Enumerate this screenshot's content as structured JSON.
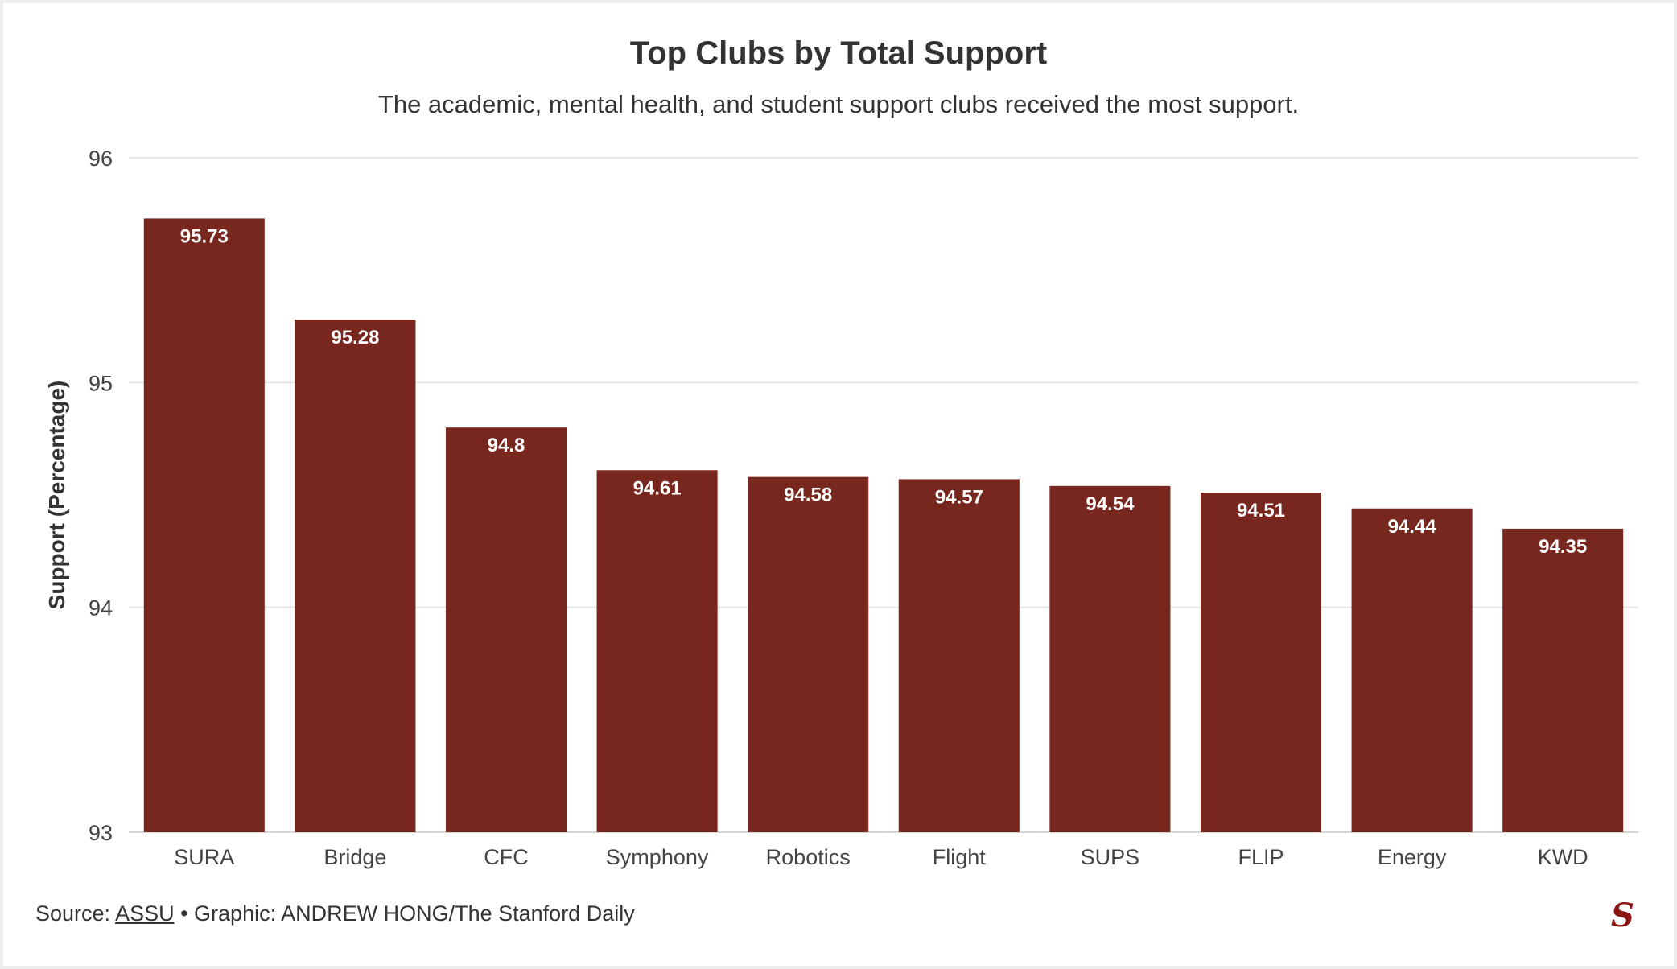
{
  "chart_data": {
    "type": "bar",
    "title": "Top Clubs by Total Support",
    "subtitle": "The academic, mental health, and student support clubs received the most support.",
    "xlabel": "",
    "ylabel": "Support (Percentage)",
    "categories": [
      "SURA",
      "Bridge",
      "CFC",
      "Symphony",
      "Robotics",
      "Flight",
      "SUPS",
      "FLIP",
      "Energy",
      "KWD"
    ],
    "values": [
      95.73,
      95.28,
      94.8,
      94.61,
      94.58,
      94.57,
      94.54,
      94.51,
      94.44,
      94.35
    ],
    "value_labels": [
      "95.73",
      "95.28",
      "94.8",
      "94.61",
      "94.58",
      "94.57",
      "94.54",
      "94.51",
      "94.44",
      "94.35"
    ],
    "ylim": [
      93,
      96
    ],
    "yticks": [
      93,
      94,
      95,
      96
    ],
    "grid": true,
    "legend": "none",
    "bar_color": "#78271f"
  },
  "footer": {
    "source_prefix": "Source: ",
    "source_link": "ASSU",
    "credit": " • Graphic: ANDREW HONG/The Stanford Daily"
  },
  "logo": {
    "glyph": "S",
    "icon": "stanford-daily-logo-icon"
  }
}
